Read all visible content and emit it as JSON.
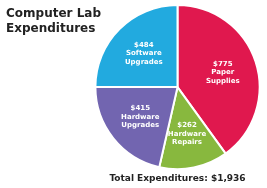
{
  "chart_data": {
    "type": "pie",
    "title": "Computer Lab\nExpenditures",
    "subtitle": "Total Expenditures: $1,936",
    "categories": [
      "Paper\nSupplies",
      "Hardware\nRepairs",
      "Hardware\nUpgrades",
      "Software\nUpgrades"
    ],
    "values": [
      775,
      262,
      415,
      484
    ],
    "value_labels": [
      "$775",
      "$262",
      "$415",
      "$484"
    ],
    "data_labels": true,
    "colors": [
      "#e0184e",
      "#88b83e",
      "#7265b0",
      "#22aadf"
    ],
    "legend": false
  }
}
